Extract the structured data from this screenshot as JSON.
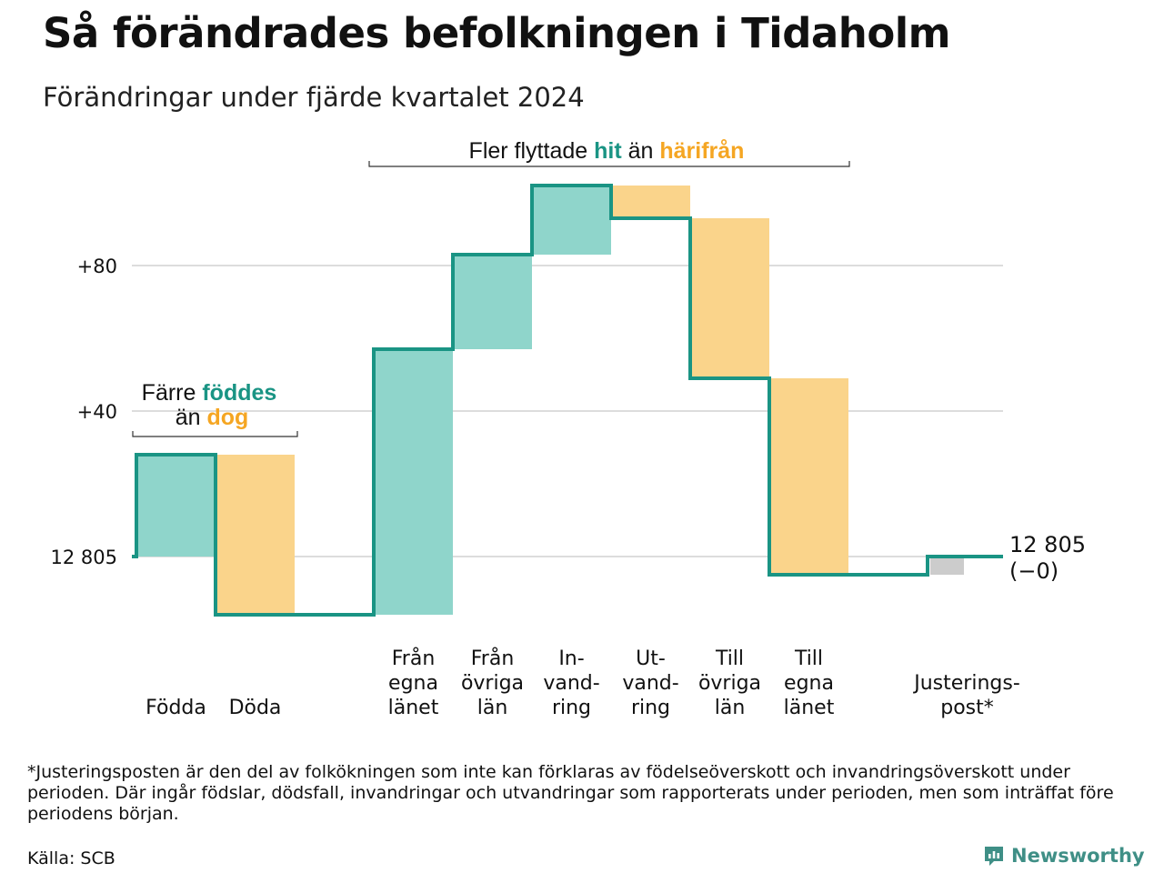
{
  "header": {
    "title": "Så förändrades befolkningen i Tidaholm",
    "subtitle": "Förändringar under fjärde kvartalet 2024"
  },
  "colors": {
    "positive": "#8fd5cb",
    "negative": "#fad48b",
    "adjustment": "#cccccc",
    "line": "#1a9484",
    "accent_positive_text": "#1a9484",
    "accent_negative_text": "#f5a623",
    "grid": "#dddddd"
  },
  "annotations": {
    "births": {
      "line1_prefix": "Färre ",
      "line1_highlight": "föddes",
      "line2_prefix": "än ",
      "line2_highlight": "dog"
    },
    "migration": {
      "prefix": "Fler flyttade ",
      "highlight1": "hit",
      "middle": " än ",
      "highlight2": "härifrån"
    }
  },
  "end_label": {
    "value": "12 805",
    "change": "(−0)"
  },
  "chart_data": {
    "type": "waterfall",
    "baseline": 12805,
    "baseline_label": "12 805",
    "yticks": [
      {
        "value": 0,
        "label": "12 805"
      },
      {
        "value": 40,
        "label": "+40"
      },
      {
        "value": 80,
        "label": "+80"
      }
    ],
    "ylim": [
      -20,
      105
    ],
    "steps": [
      {
        "label": [
          "Födda"
        ],
        "change": 28,
        "kind": "positive"
      },
      {
        "label": [
          "Döda"
        ],
        "change": -44,
        "kind": "negative"
      },
      {
        "label": [],
        "change": 0,
        "kind": "gap"
      },
      {
        "label": [
          "Från",
          "egna",
          "länet"
        ],
        "change": 73,
        "kind": "positive"
      },
      {
        "label": [
          "Från",
          "övriga",
          "län"
        ],
        "change": 26,
        "kind": "positive"
      },
      {
        "label": [
          "In-",
          "vand-",
          "ring"
        ],
        "change": 19,
        "kind": "positive"
      },
      {
        "label": [
          "Ut-",
          "vand-",
          "ring"
        ],
        "change": -9,
        "kind": "negative"
      },
      {
        "label": [
          "Till",
          "övriga",
          "län"
        ],
        "change": -44,
        "kind": "negative"
      },
      {
        "label": [
          "Till",
          "egna",
          "länet"
        ],
        "change": -54,
        "kind": "negative"
      },
      {
        "label": [],
        "change": 0,
        "kind": "gap"
      },
      {
        "label": [
          "Justerings-",
          "post*"
        ],
        "change": 5,
        "kind": "adjustment"
      }
    ],
    "end_value": 0
  },
  "footer": {
    "footnote": "*Justeringsposten är den del av folkökningen som inte kan förklaras av födelseöverskott och invandringsöverskott under perioden. Där ingår födslar, dödsfall, invandringar och utvandringar som rapporterats under perioden, men som inträffat före periodens början.",
    "source": "Källa: SCB",
    "brand": "Newsworthy",
    "brand_icon": "newsworthy-logo-icon"
  }
}
